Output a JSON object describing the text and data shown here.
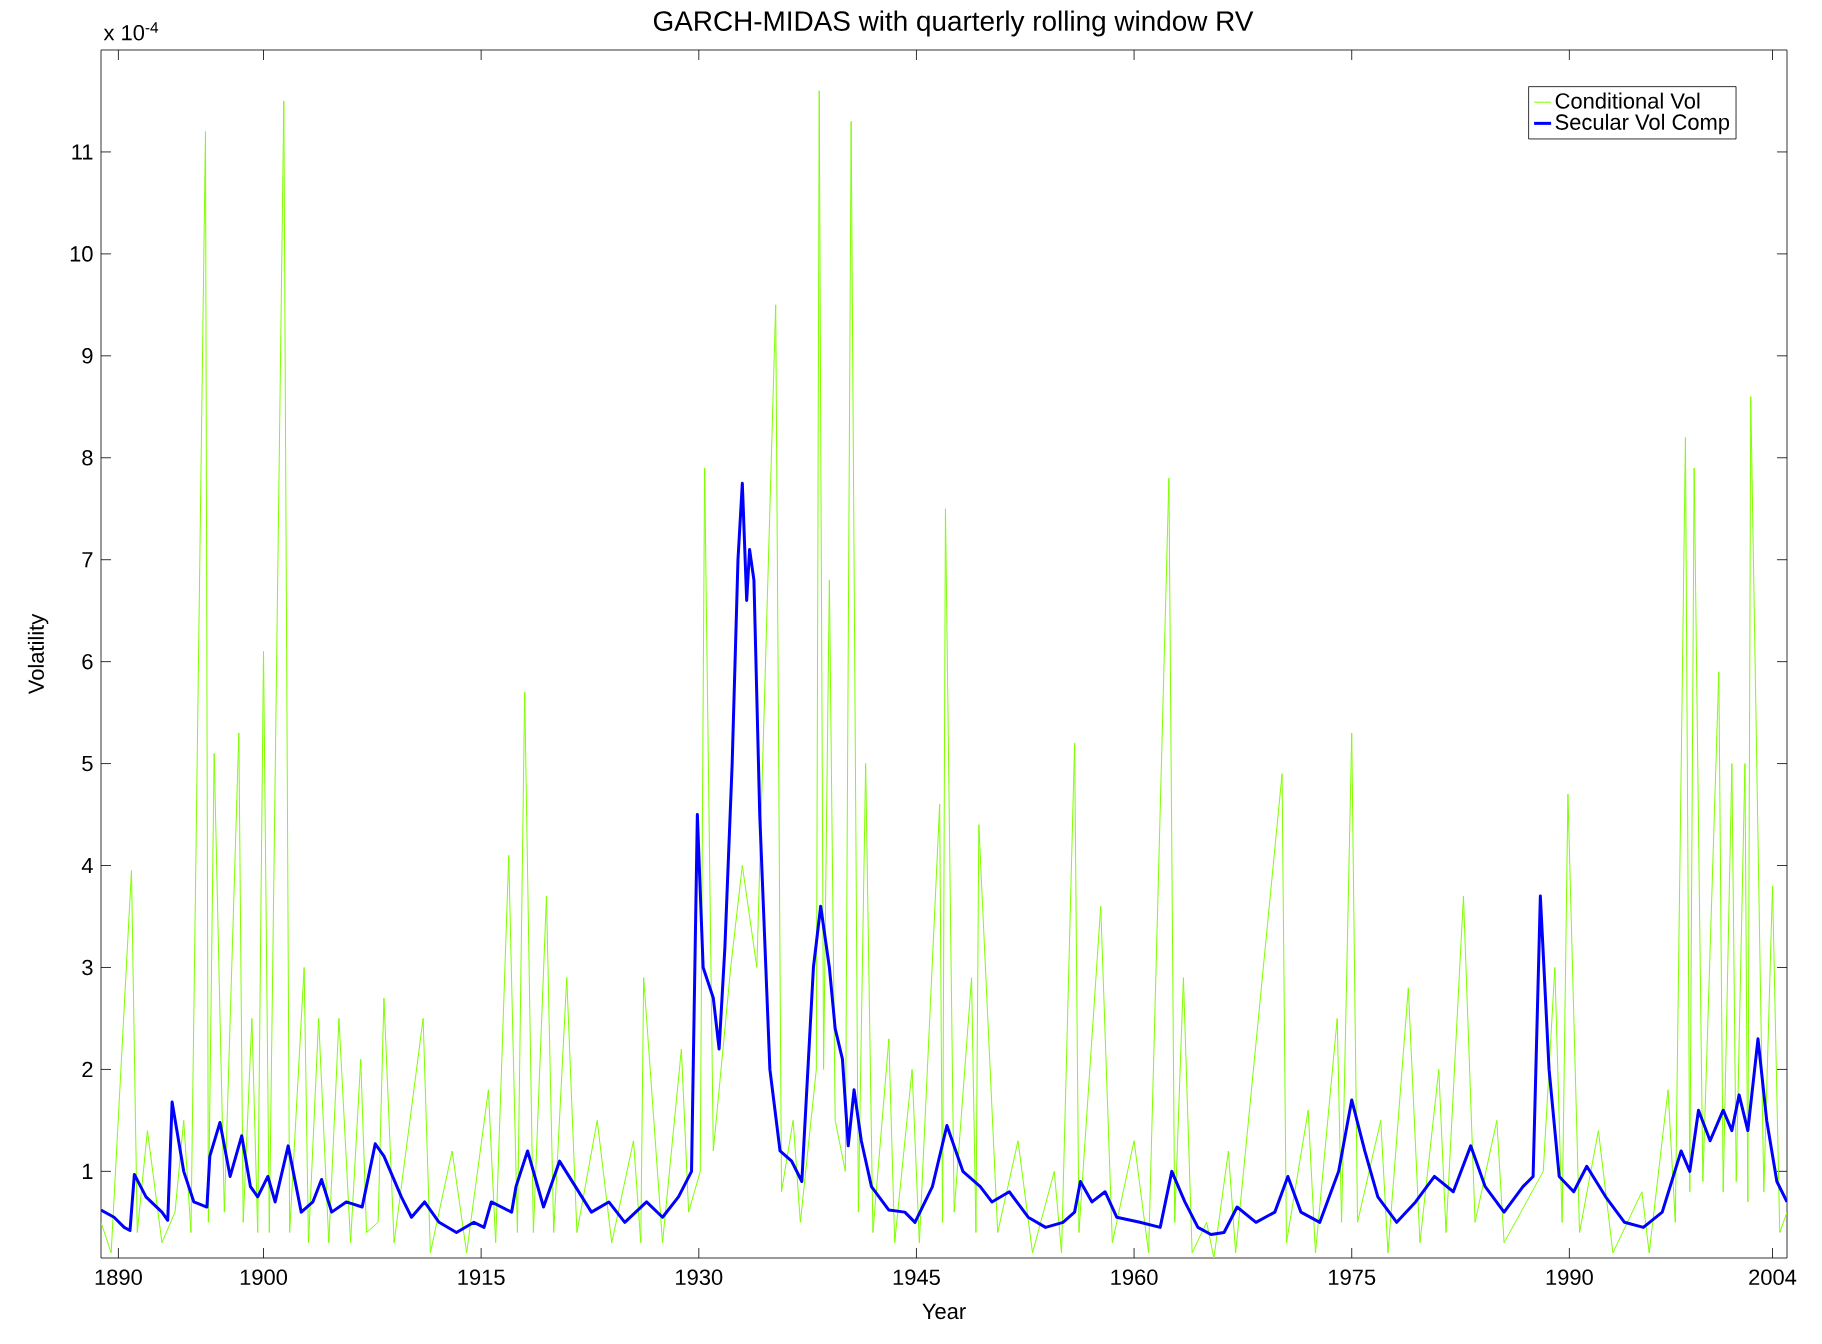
{
  "chart_data": {
    "type": "line",
    "title": "GARCH-MIDAS with quarterly rolling window RV",
    "xlabel": "Year",
    "ylabel": "Volatility",
    "annotations": [
      "x 10$^{-4}$"
    ],
    "xlim": [
      1888.8,
      2005.0
    ],
    "ylim": [
      0.15,
      12
    ],
    "xticks": [
      1890,
      1900,
      1915,
      1930,
      1945,
      1960,
      1975,
      1990,
      2004
    ],
    "yticks": [
      1,
      2,
      3,
      4,
      5,
      6,
      7,
      8,
      9,
      10,
      11
    ],
    "legend": "top right",
    "marker": "none",
    "line_style": "solid",
    "series": [
      {
        "name": "Conditional Vol",
        "color": "#7fff00",
        "x": [
          1888.8,
          1889.5,
          1890.9,
          1891.3,
          1892.0,
          1893.0,
          1893.5,
          1893.9,
          1894.5,
          1895.0,
          1896.0,
          1896.2,
          1896.6,
          1897.3,
          1898.3,
          1898.6,
          1899.2,
          1899.6,
          1900.0,
          1900.4,
          1901.4,
          1901.8,
          1902.8,
          1903.1,
          1903.8,
          1904.5,
          1905.2,
          1906.0,
          1906.7,
          1907.1,
          1907.4,
          1907.9,
          1908.3,
          1909.0,
          1911.0,
          1911.5,
          1913.0,
          1914.0,
          1915.5,
          1916.0,
          1916.9,
          1917.5,
          1918.0,
          1918.6,
          1919.5,
          1920.0,
          1920.9,
          1921.6,
          1923.0,
          1924.0,
          1925.5,
          1926.0,
          1926.2,
          1927.5,
          1928.8,
          1929.3,
          1929.9,
          1930.1,
          1930.4,
          1931.0,
          1931.8,
          1932.2,
          1932.6,
          1933.0,
          1933.5,
          1934.0,
          1934.5,
          1934.8,
          1935.3,
          1935.7,
          1936.5,
          1937.0,
          1937.9,
          1938.1,
          1938.3,
          1938.6,
          1939.0,
          1939.4,
          1939.7,
          1940.1,
          1940.5,
          1941.0,
          1941.5,
          1942.0,
          1943.1,
          1943.5,
          1944.7,
          1945.2,
          1946.6,
          1946.8,
          1947.0,
          1947.6,
          1948.8,
          1949.1,
          1949.3,
          1950.6,
          1952.0,
          1953.0,
          1954.5,
          1955.0,
          1955.9,
          1956.2,
          1957.7,
          1958.5,
          1960.0,
          1961.0,
          1962.4,
          1962.8,
          1963.4,
          1964.0,
          1965.0,
          1965.5,
          1966.5,
          1967.0,
          1970.2,
          1970.5,
          1972.0,
          1972.5,
          1974.0,
          1974.3,
          1975.0,
          1975.4,
          1977.0,
          1977.5,
          1978.9,
          1979.7,
          1981.0,
          1981.5,
          1982.7,
          1983.5,
          1985.0,
          1985.5,
          1987.8,
          1988.2,
          1989.0,
          1989.5,
          1989.9,
          1990.7,
          1992.0,
          1993.0,
          1995.0,
          1995.5,
          1996.8,
          1997.3,
          1998.0,
          1998.3,
          1998.6,
          1999.2,
          2000.3,
          2000.6,
          2001.2,
          2001.5,
          2002.1,
          2002.3,
          2002.5,
          2003.4,
          2004.0,
          2004.5,
          2005.0
        ],
        "values": [
          0.5,
          0.2,
          3.95,
          0.4,
          1.4,
          0.3,
          null,
          0.6,
          1.5,
          0.4,
          11.2,
          0.5,
          5.1,
          0.6,
          5.3,
          0.5,
          2.5,
          0.4,
          6.1,
          0.4,
          11.5,
          0.4,
          3.0,
          0.3,
          2.5,
          0.3,
          2.5,
          0.3,
          2.1,
          0.4,
          null,
          0.5,
          2.7,
          0.3,
          2.5,
          0.2,
          1.2,
          0.2,
          1.8,
          0.3,
          4.1,
          0.4,
          5.7,
          0.4,
          3.7,
          0.4,
          2.9,
          0.4,
          1.5,
          0.3,
          1.3,
          0.3,
          2.9,
          0.3,
          2.2,
          0.6,
          null,
          1.0,
          7.9,
          1.2,
          null,
          3.0,
          null,
          4.0,
          null,
          3.0,
          null,
          null,
          9.5,
          0.8,
          1.5,
          0.5,
          null,
          2.0,
          11.6,
          2.0,
          6.8,
          1.5,
          null,
          1.0,
          11.3,
          0.6,
          5.0,
          0.4,
          2.3,
          0.3,
          2.0,
          0.3,
          4.6,
          0.5,
          7.5,
          0.6,
          2.9,
          0.4,
          4.4,
          0.4,
          1.3,
          0.2,
          1.0,
          0.2,
          5.2,
          0.4,
          3.6,
          0.3,
          1.3,
          0.2,
          7.8,
          0.5,
          2.9,
          0.2,
          0.5,
          0.15,
          1.2,
          0.2,
          4.9,
          0.3,
          1.6,
          0.2,
          2.5,
          0.5,
          5.3,
          0.5,
          1.5,
          0.2,
          2.8,
          0.3,
          2.0,
          0.4,
          3.7,
          0.5,
          1.5,
          0.3,
          null,
          1.0,
          3.0,
          0.5,
          4.7,
          0.4,
          1.4,
          0.2,
          0.8,
          0.2,
          1.8,
          0.5,
          8.2,
          0.8,
          7.9,
          0.9,
          5.9,
          0.8,
          5.0,
          0.9,
          5.0,
          0.7,
          8.6,
          0.8,
          3.8,
          0.4,
          0.6
        ]
      },
      {
        "name": "Secular Vol Comp",
        "color": "#0000ff",
        "x": [
          1888.8,
          1889.7,
          1890.4,
          1890.8,
          1891.1,
          1891.9,
          1893.0,
          1893.4,
          1893.7,
          1894.5,
          1895.2,
          1896.1,
          1896.3,
          1897.0,
          1897.7,
          1898.5,
          1899.1,
          1899.6,
          1900.3,
          1900.8,
          1901.7,
          1902.6,
          1903.4,
          1904.0,
          1904.7,
          1905.7,
          1906.8,
          1907.7,
          1908.3,
          1909.5,
          1910.2,
          1911.1,
          1912.1,
          1913.3,
          1914.5,
          1915.2,
          1915.7,
          1917.1,
          1917.4,
          1918.2,
          1919.3,
          1920.4,
          1921.5,
          1922.6,
          1923.8,
          1924.9,
          1926.4,
          1927.5,
          1928.6,
          1929.5,
          1929.9,
          1930.3,
          1931.0,
          1931.4,
          1931.8,
          1932.3,
          1932.7,
          1933.0,
          1933.3,
          1933.5,
          1933.8,
          1934.2,
          1934.9,
          1935.6,
          1936.4,
          1937.1,
          1937.9,
          1938.4,
          1939.0,
          1939.4,
          1939.9,
          1940.3,
          1940.7,
          1941.2,
          1941.9,
          1943.1,
          1944.2,
          1944.9,
          1946.1,
          1947.1,
          1948.2,
          1949.4,
          1950.2,
          1951.4,
          1952.7,
          1953.9,
          1955.1,
          1955.9,
          1956.3,
          1957.1,
          1958.0,
          1958.8,
          1960.4,
          1961.8,
          1962.6,
          1963.5,
          1964.4,
          1965.3,
          1966.2,
          1967.1,
          1968.4,
          1969.7,
          1970.6,
          1971.5,
          1972.8,
          1974.1,
          1975.0,
          1975.9,
          1976.8,
          1978.1,
          1979.4,
          1980.7,
          1982.0,
          1983.2,
          1984.2,
          1985.5,
          1986.8,
          1987.5,
          1988.0,
          1988.6,
          1989.3,
          1990.3,
          1991.2,
          1992.5,
          1993.8,
          1995.1,
          1996.4,
          1997.7,
          1998.3,
          1998.9,
          1999.7,
          2000.6,
          2001.2,
          2001.7,
          2002.3,
          2003.0,
          2003.6,
          2004.3,
          2005.0
        ],
        "values": [
          0.62,
          0.55,
          0.45,
          0.42,
          0.97,
          0.75,
          0.6,
          0.52,
          1.68,
          1.0,
          0.7,
          0.65,
          1.15,
          1.48,
          0.95,
          1.35,
          0.85,
          0.75,
          0.95,
          0.7,
          1.25,
          0.6,
          0.7,
          0.92,
          0.6,
          0.7,
          0.65,
          1.27,
          1.15,
          0.75,
          0.55,
          0.7,
          0.5,
          0.4,
          0.5,
          0.45,
          0.7,
          0.6,
          0.85,
          1.2,
          0.65,
          1.1,
          0.85,
          0.6,
          0.7,
          0.5,
          0.7,
          0.55,
          0.75,
          1.0,
          4.5,
          3.0,
          2.7,
          2.2,
          3.2,
          5.0,
          7.0,
          7.75,
          6.6,
          7.1,
          6.8,
          4.5,
          2.0,
          1.2,
          1.1,
          0.9,
          3.0,
          3.6,
          3.0,
          2.4,
          2.1,
          1.25,
          1.8,
          1.3,
          0.85,
          0.62,
          0.6,
          0.5,
          0.85,
          1.45,
          1.0,
          0.85,
          0.7,
          0.8,
          0.55,
          0.45,
          0.5,
          0.6,
          0.9,
          0.7,
          0.8,
          0.55,
          0.5,
          0.45,
          1.0,
          0.7,
          0.45,
          0.38,
          0.4,
          0.65,
          0.5,
          0.6,
          0.95,
          0.6,
          0.5,
          1.0,
          1.7,
          1.2,
          0.75,
          0.5,
          0.7,
          0.95,
          0.8,
          1.25,
          0.85,
          0.6,
          0.85,
          0.95,
          3.7,
          2.0,
          0.95,
          0.8,
          1.05,
          0.75,
          0.5,
          0.45,
          0.6,
          1.2,
          1.0,
          1.6,
          1.3,
          1.6,
          1.4,
          1.75,
          1.4,
          2.3,
          1.5,
          0.9,
          0.7
        ]
      }
    ]
  }
}
